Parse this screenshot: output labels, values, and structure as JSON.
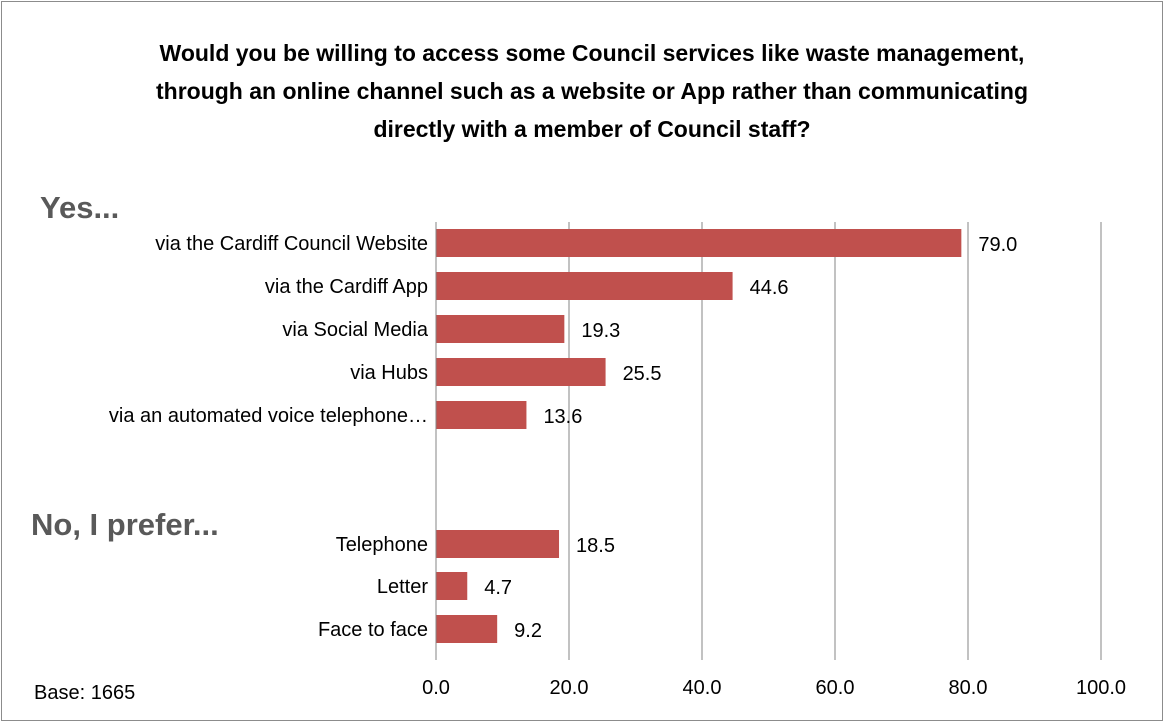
{
  "chart_data": {
    "type": "bar",
    "orientation": "horizontal",
    "title": "Would you be willing to access some Council services like waste management, through an online channel such as a website or App rather than communicating directly with a member of Council staff?",
    "groups": [
      {
        "label": "Yes...",
        "categories": [
          "via the Cardiff Council Website",
          "via the Cardiff App",
          "via Social Media",
          "via Hubs",
          "via an automated voice telephone…"
        ],
        "values": [
          79.0,
          44.6,
          19.3,
          25.5,
          13.6
        ]
      },
      {
        "label": "No, I prefer...",
        "categories": [
          "Telephone",
          "Letter",
          "Face to face"
        ],
        "values": [
          18.5,
          4.7,
          9.2
        ]
      }
    ],
    "xlim": [
      0,
      100
    ],
    "xticks": [
      "0.0",
      "20.0",
      "40.0",
      "60.0",
      "80.0",
      "100.0"
    ],
    "grid": true,
    "bar_color": "#c0504d",
    "note": "Base: 1665"
  }
}
